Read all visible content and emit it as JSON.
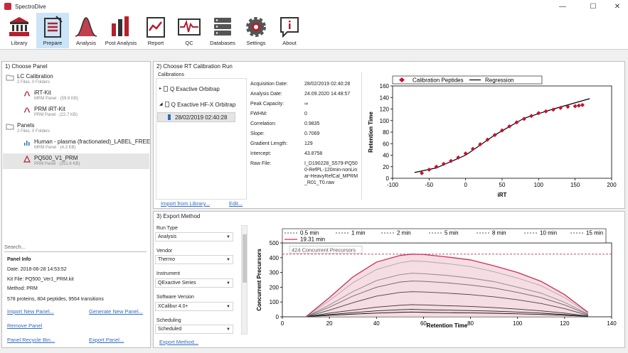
{
  "window": {
    "title": "SpectroDive",
    "minimize": "—",
    "maximize": "☐",
    "close": "✕"
  },
  "toolbar": [
    {
      "label": "Library",
      "icon": "library-icon"
    },
    {
      "label": "Prepare",
      "icon": "prepare-icon",
      "active": true
    },
    {
      "label": "Analysis",
      "icon": "analysis-icon"
    },
    {
      "label": "Post Analysis",
      "icon": "post-analysis-icon"
    },
    {
      "label": "Report",
      "icon": "report-icon"
    },
    {
      "label": "QC",
      "icon": "qc-icon"
    },
    {
      "label": "Databases",
      "icon": "databases-icon"
    },
    {
      "label": "Settings",
      "icon": "settings-icon"
    },
    {
      "label": "About",
      "icon": "about-icon"
    }
  ],
  "panel1": {
    "title": "1) Choose Panel",
    "tree": [
      {
        "label": "LC Calibration",
        "sub": "2 Files, 0 Folders"
      },
      {
        "label": "iRT-Kit",
        "sub": "MRM Panel · (59.9 KB)"
      },
      {
        "label": "PRM iRT-Kit",
        "sub": "PRM Panel · (22.7 KB)"
      },
      {
        "label": "Panels",
        "sub": "2 Files, 0 Folders"
      },
      {
        "label": "Human - plasma (fractionated)_LABEL_FREE",
        "sub": "MRM Panel · (4.3 KB)"
      },
      {
        "label": "PQ500_V1_PRM",
        "sub": "PRM Panel · (251.6 KB)"
      }
    ],
    "search_placeholder": "Search...",
    "info_title": "Panel Info",
    "date": "Date:    2018-06-28 14:53:52",
    "kit_file": "Kit File: PQ500_Ver1_PRM.kit",
    "method": "Method:  PRM",
    "summary": "578 proteins, 804 peptides, 9564 transitions",
    "links": {
      "import": "Import New Panel...",
      "generate": "Generate New Panel...",
      "remove": "Remove Panel",
      "recycle": "Panel Recycle Bin...",
      "export": "Export Panel..."
    }
  },
  "panel2": {
    "title": "2) Choose RT Calibration Run",
    "calibrations_label": "Calibrations",
    "instruments": [
      "Q Exactive Orbitrap",
      "Q Exactive HF-X Orbitrap"
    ],
    "selected_run": "28/02/2019 02:40:28",
    "details": [
      {
        "label": "Acquisition Date:",
        "value": "28/02/2019 02:40:28"
      },
      {
        "label": "Analysis Date:",
        "value": "24.09.2020 14:48:57"
      },
      {
        "label": "Peak Capacity:",
        "value": "∞"
      },
      {
        "label": "FWHM:",
        "value": "0"
      },
      {
        "label": "Correlation:",
        "value": "0.9835"
      },
      {
        "label": "Slope:",
        "value": "0.7069"
      },
      {
        "label": "Gradient Length:",
        "value": "129"
      },
      {
        "label": "Intercept:",
        "value": "43.8758"
      }
    ],
    "raw_file_label": "Raw File:",
    "raw_file_lines": [
      "I_D190228_S579-PQ50",
      "0-RefPL-120min-nonLin",
      "ar-HeavyRefCal_MPRM",
      "_R01_T0.raw"
    ],
    "links": {
      "import": "Import from Library...",
      "edit": "Edit..."
    }
  },
  "chart_rt": {
    "legend": [
      "Calibration Peptides",
      "Regression"
    ],
    "xlabel": "iRT",
    "ylabel": "Retention Time",
    "xticks": [
      "-100",
      "-50",
      "0",
      "50",
      "100",
      "150",
      "200"
    ],
    "yticks": [
      "0",
      "20",
      "40",
      "60",
      "80",
      "100",
      "120",
      "140",
      "160"
    ],
    "colors": {
      "points": "#c8102e",
      "line": "#000000"
    }
  },
  "panel3": {
    "title": "3) Export Method",
    "fields": [
      {
        "label": "Run Type",
        "value": "Analysis"
      },
      {
        "label": "Vendor",
        "value": "Thermo"
      },
      {
        "label": "Instrument",
        "value": "QExactive Series"
      },
      {
        "label": "Software Version",
        "value": "XCalibur 4.0+"
      },
      {
        "label": "Scheduling",
        "value": "Scheduled"
      }
    ],
    "export_link": "Export Method..."
  },
  "chart_cp": {
    "legend": [
      "0.5 min",
      "1 min",
      "2 min",
      "5 min",
      "8 min",
      "10 min",
      "15 min",
      "19.31 min"
    ],
    "annotation": "424 Concurrent Precursors",
    "xlabel": "Retention Time",
    "ylabel": "Concurrent Precursors",
    "xticks": [
      "0",
      "20",
      "40",
      "60",
      "80",
      "100",
      "120",
      "140"
    ],
    "yticks": [
      "0",
      "100",
      "200",
      "300",
      "400",
      "500"
    ],
    "colors": {
      "highlight": "#c8305a",
      "fill": "#f4d3dc"
    }
  },
  "chart_data": [
    {
      "type": "scatter",
      "xlabel": "iRT",
      "ylabel": "Retention Time",
      "xlim": [
        -100,
        200
      ],
      "ylim": [
        0,
        160
      ],
      "legend": [
        "Calibration Peptides",
        "Regression"
      ],
      "legend_position": "top",
      "series": [
        {
          "name": "Calibration Peptides",
          "x": [
            -60,
            -50,
            -40,
            -30,
            -20,
            -10,
            0,
            10,
            20,
            30,
            40,
            50,
            60,
            70,
            80,
            90,
            100,
            110,
            120,
            130,
            140,
            150,
            155,
            160
          ],
          "y": [
            9,
            15,
            20,
            25,
            30,
            36,
            43,
            51,
            59,
            67,
            75,
            83,
            90,
            97,
            103,
            108,
            113,
            116,
            119,
            122,
            124,
            125,
            126,
            127
          ]
        },
        {
          "name": "Regression",
          "x": [
            -70,
            -40,
            0,
            40,
            80,
            120,
            170
          ],
          "y": [
            10,
            18,
            40,
            75,
            104,
            120,
            138
          ]
        }
      ]
    },
    {
      "type": "area",
      "xlabel": "Retention Time",
      "ylabel": "Concurrent Precursors",
      "xlim": [
        0,
        140
      ],
      "ylim": [
        0,
        500
      ],
      "annotation": "424 Concurrent Precursors",
      "legend_position": "top",
      "x": [
        10,
        20,
        30,
        40,
        50,
        55,
        60,
        70,
        80,
        90,
        100,
        110,
        120,
        130
      ],
      "series": [
        {
          "name": "0.5 min",
          "values": [
            0,
            10,
            18,
            25,
            30,
            32,
            30,
            28,
            26,
            24,
            20,
            16,
            10,
            2
          ]
        },
        {
          "name": "1 min",
          "values": [
            0,
            15,
            28,
            40,
            48,
            50,
            48,
            45,
            42,
            38,
            32,
            25,
            15,
            3
          ]
        },
        {
          "name": "2 min",
          "values": [
            0,
            25,
            45,
            65,
            78,
            82,
            80,
            75,
            70,
            62,
            52,
            40,
            25,
            5
          ]
        },
        {
          "name": "5 min",
          "values": [
            0,
            45,
            95,
            140,
            165,
            170,
            168,
            160,
            150,
            135,
            115,
            90,
            55,
            10
          ]
        },
        {
          "name": "8 min",
          "values": [
            0,
            65,
            140,
            200,
            235,
            242,
            240,
            230,
            215,
            195,
            165,
            130,
            80,
            15
          ]
        },
        {
          "name": "10 min",
          "values": [
            0,
            80,
            170,
            245,
            285,
            295,
            292,
            280,
            262,
            238,
            200,
            160,
            98,
            18
          ]
        },
        {
          "name": "15 min",
          "values": [
            0,
            110,
            230,
            320,
            365,
            378,
            375,
            360,
            340,
            305,
            262,
            210,
            130,
            25
          ]
        },
        {
          "name": "19.31 min",
          "values": [
            0,
            130,
            270,
            370,
            415,
            424,
            422,
            405,
            385,
            345,
            300,
            240,
            150,
            30
          ]
        }
      ]
    }
  ]
}
